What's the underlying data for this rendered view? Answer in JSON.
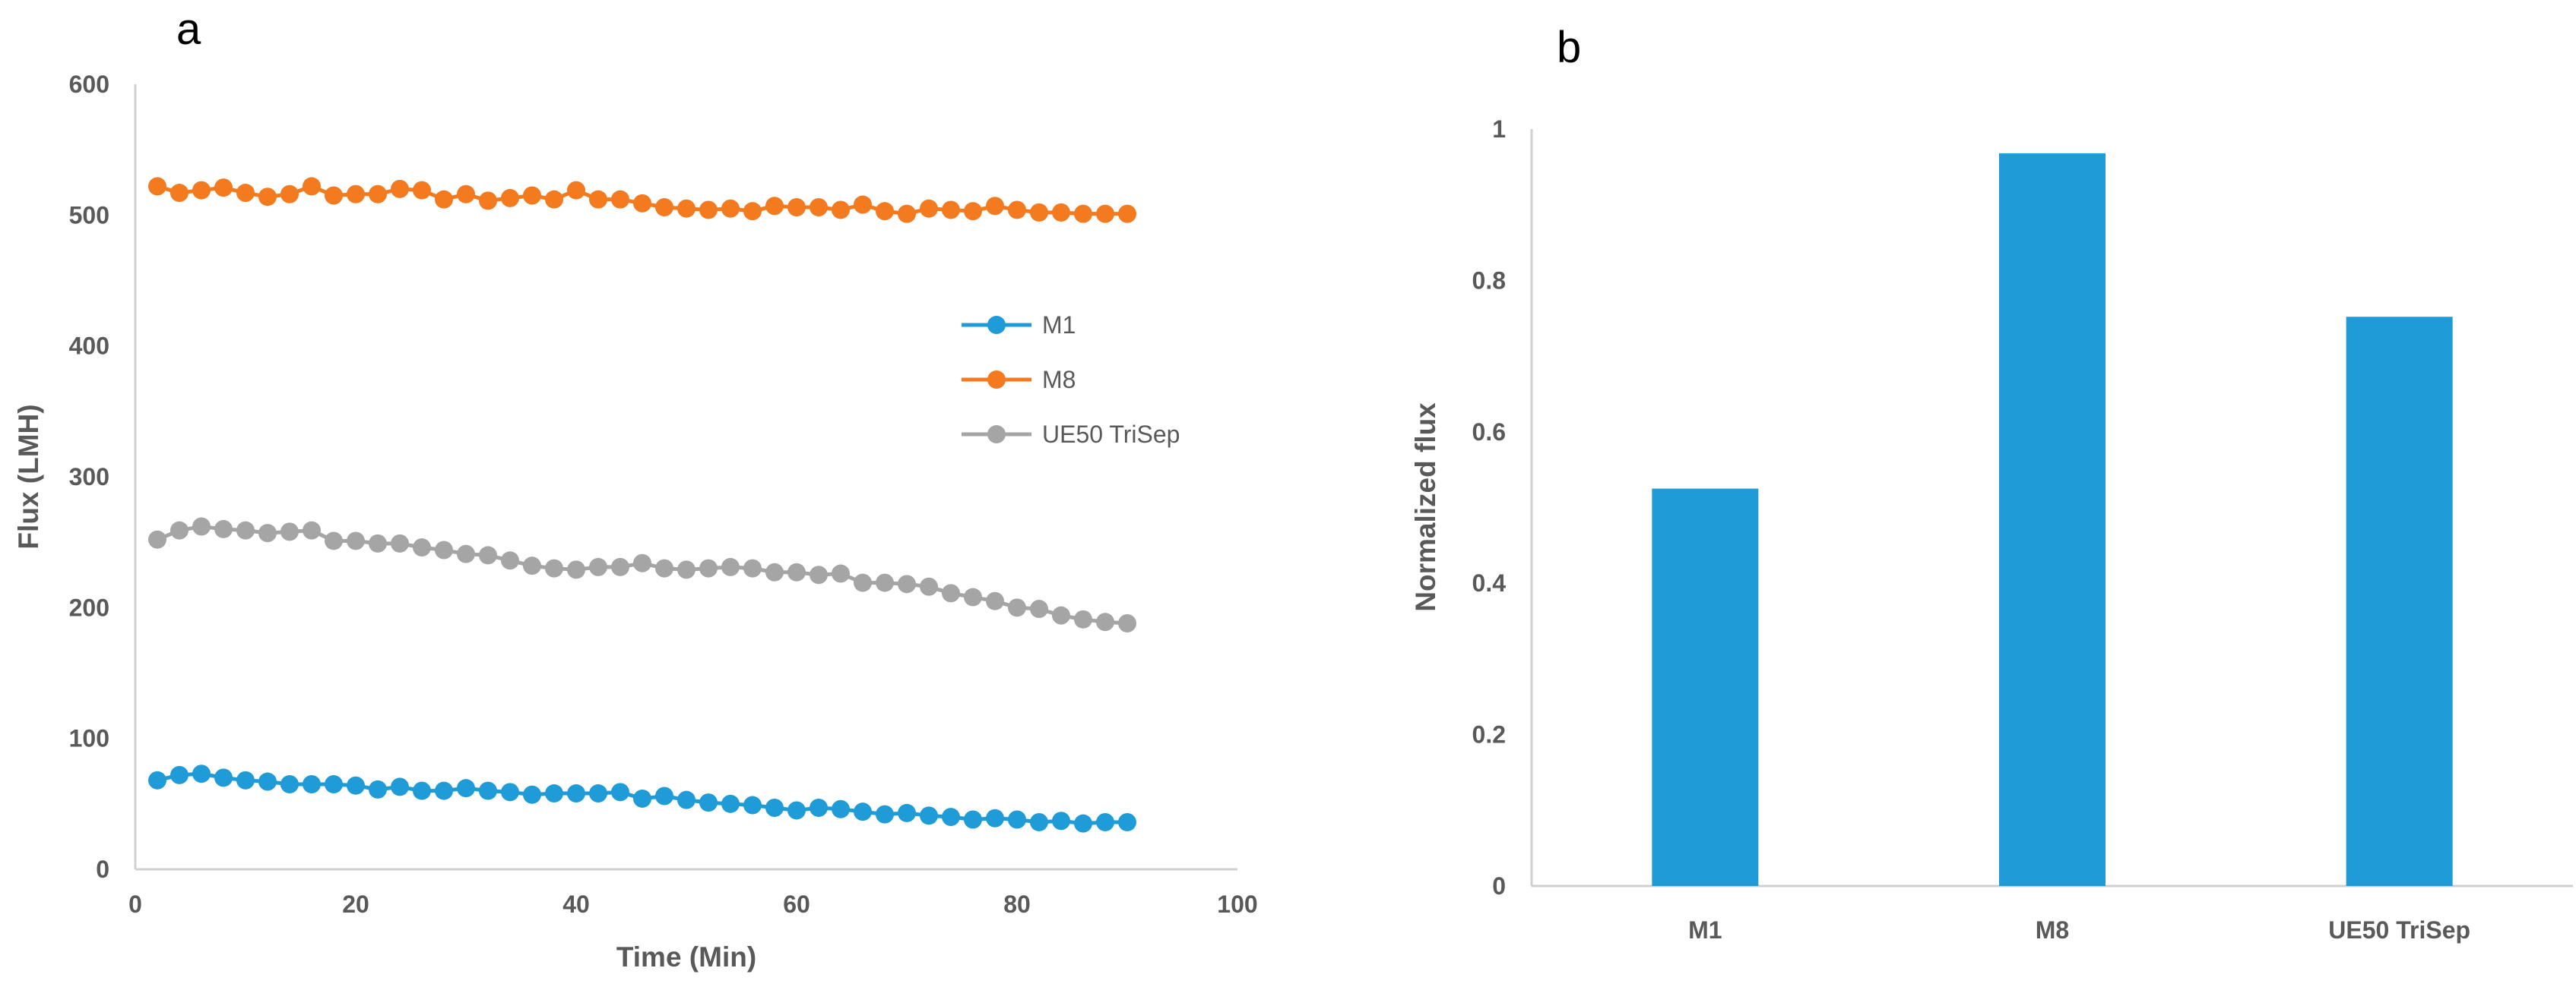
{
  "chart_data": [
    {
      "panel_label": "a",
      "type": "line",
      "xlabel": "Time (Min)",
      "ylabel": "Flux (LMH)",
      "xlim": [
        0,
        100
      ],
      "ylim": [
        0,
        600
      ],
      "xticks": [
        0,
        20,
        40,
        60,
        80,
        100
      ],
      "yticks": [
        0,
        100,
        200,
        300,
        400,
        500,
        600
      ],
      "legend_position": "right-middle",
      "x": [
        2,
        4,
        6,
        8,
        10,
        12,
        14,
        16,
        18,
        20,
        22,
        24,
        26,
        28,
        30,
        32,
        34,
        36,
        38,
        40,
        42,
        44,
        46,
        48,
        50,
        52,
        54,
        56,
        58,
        60,
        62,
        64,
        66,
        68,
        70,
        72,
        74,
        76,
        78,
        80,
        82,
        84,
        86,
        88,
        90
      ],
      "series": [
        {
          "name": "M1",
          "color": "#1f9bd7",
          "values": [
            68,
            72,
            73,
            70,
            68,
            67,
            65,
            65,
            65,
            64,
            61,
            63,
            60,
            60,
            62,
            60,
            59,
            57,
            58,
            58,
            58,
            59,
            54,
            56,
            53,
            51,
            50,
            49,
            47,
            45,
            47,
            46,
            44,
            42,
            43,
            41,
            40,
            38,
            39,
            38,
            36,
            37,
            35,
            36,
            36
          ]
        },
        {
          "name": "M8",
          "color": "#f47a20",
          "values": [
            522,
            517,
            519,
            521,
            517,
            514,
            516,
            522,
            515,
            516,
            516,
            520,
            519,
            512,
            516,
            511,
            513,
            515,
            512,
            519,
            512,
            512,
            509,
            506,
            505,
            504,
            505,
            503,
            507,
            506,
            506,
            504,
            508,
            503,
            501,
            505,
            504,
            503,
            507,
            504,
            502,
            502,
            501,
            501,
            501
          ]
        },
        {
          "name": "UE50 TriSep",
          "color": "#a5a5a5",
          "values": [
            252,
            259,
            262,
            260,
            259,
            257,
            258,
            259,
            251,
            251,
            249,
            249,
            246,
            244,
            241,
            240,
            236,
            232,
            230,
            229,
            231,
            231,
            234,
            230,
            229,
            230,
            231,
            230,
            227,
            227,
            225,
            226,
            219,
            219,
            218,
            216,
            211,
            208,
            205,
            200,
            199,
            194,
            191,
            189,
            188
          ]
        }
      ]
    },
    {
      "panel_label": "b",
      "type": "bar",
      "xlabel": "",
      "ylabel": "Normalized flux",
      "ylim": [
        0,
        1
      ],
      "yticks": [
        "0",
        "0.2",
        "0.4",
        "0.6",
        "0.8",
        "1"
      ],
      "categories": [
        "M1",
        "M8",
        "UE50 TriSep"
      ],
      "values": [
        0.525,
        0.968,
        0.752
      ],
      "color": "#1f9bd7"
    }
  ]
}
